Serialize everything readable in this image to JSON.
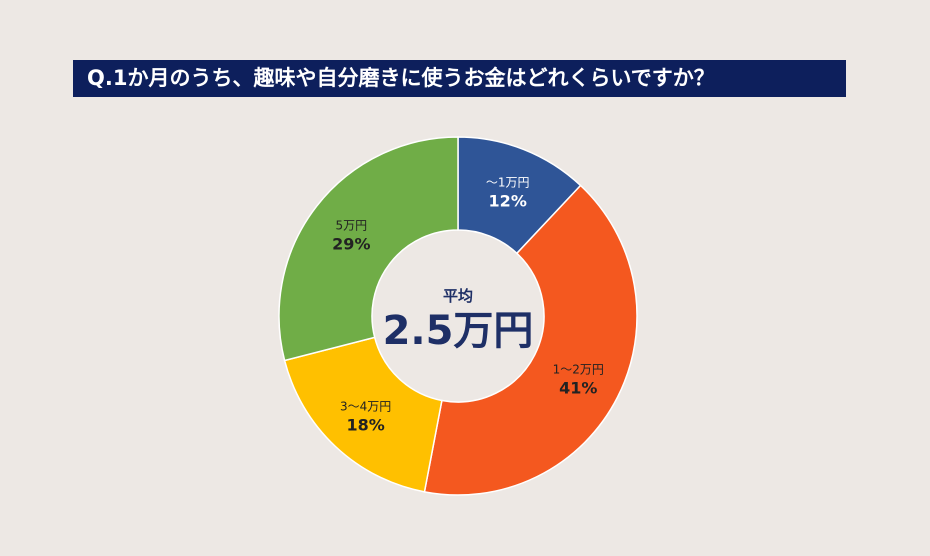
{
  "title": "Q.1か月のうち、趣味や自分磨きに使うお金はどれくらいですか？",
  "chart_data": {
    "type": "pie",
    "title": "Q.1か月のうち、趣味や自分磨きに使うお金はどれくらいですか？",
    "center": {
      "caption": "平均",
      "value": "2.5万円"
    },
    "slices": [
      {
        "label": "～1万円",
        "value": 12,
        "value_label": "12%",
        "color": "#2f5597",
        "text_color": "#ffffff"
      },
      {
        "label": "1～2万円",
        "value": 41,
        "value_label": "41%",
        "color": "#f4581f",
        "text_color": "#222222"
      },
      {
        "label": "3～4万円",
        "value": 18,
        "value_label": "18%",
        "color": "#ffc000",
        "text_color": "#222222"
      },
      {
        "label": "5万円",
        "value": 29,
        "value_label": "29%",
        "color": "#70ad47",
        "text_color": "#222222"
      }
    ]
  }
}
